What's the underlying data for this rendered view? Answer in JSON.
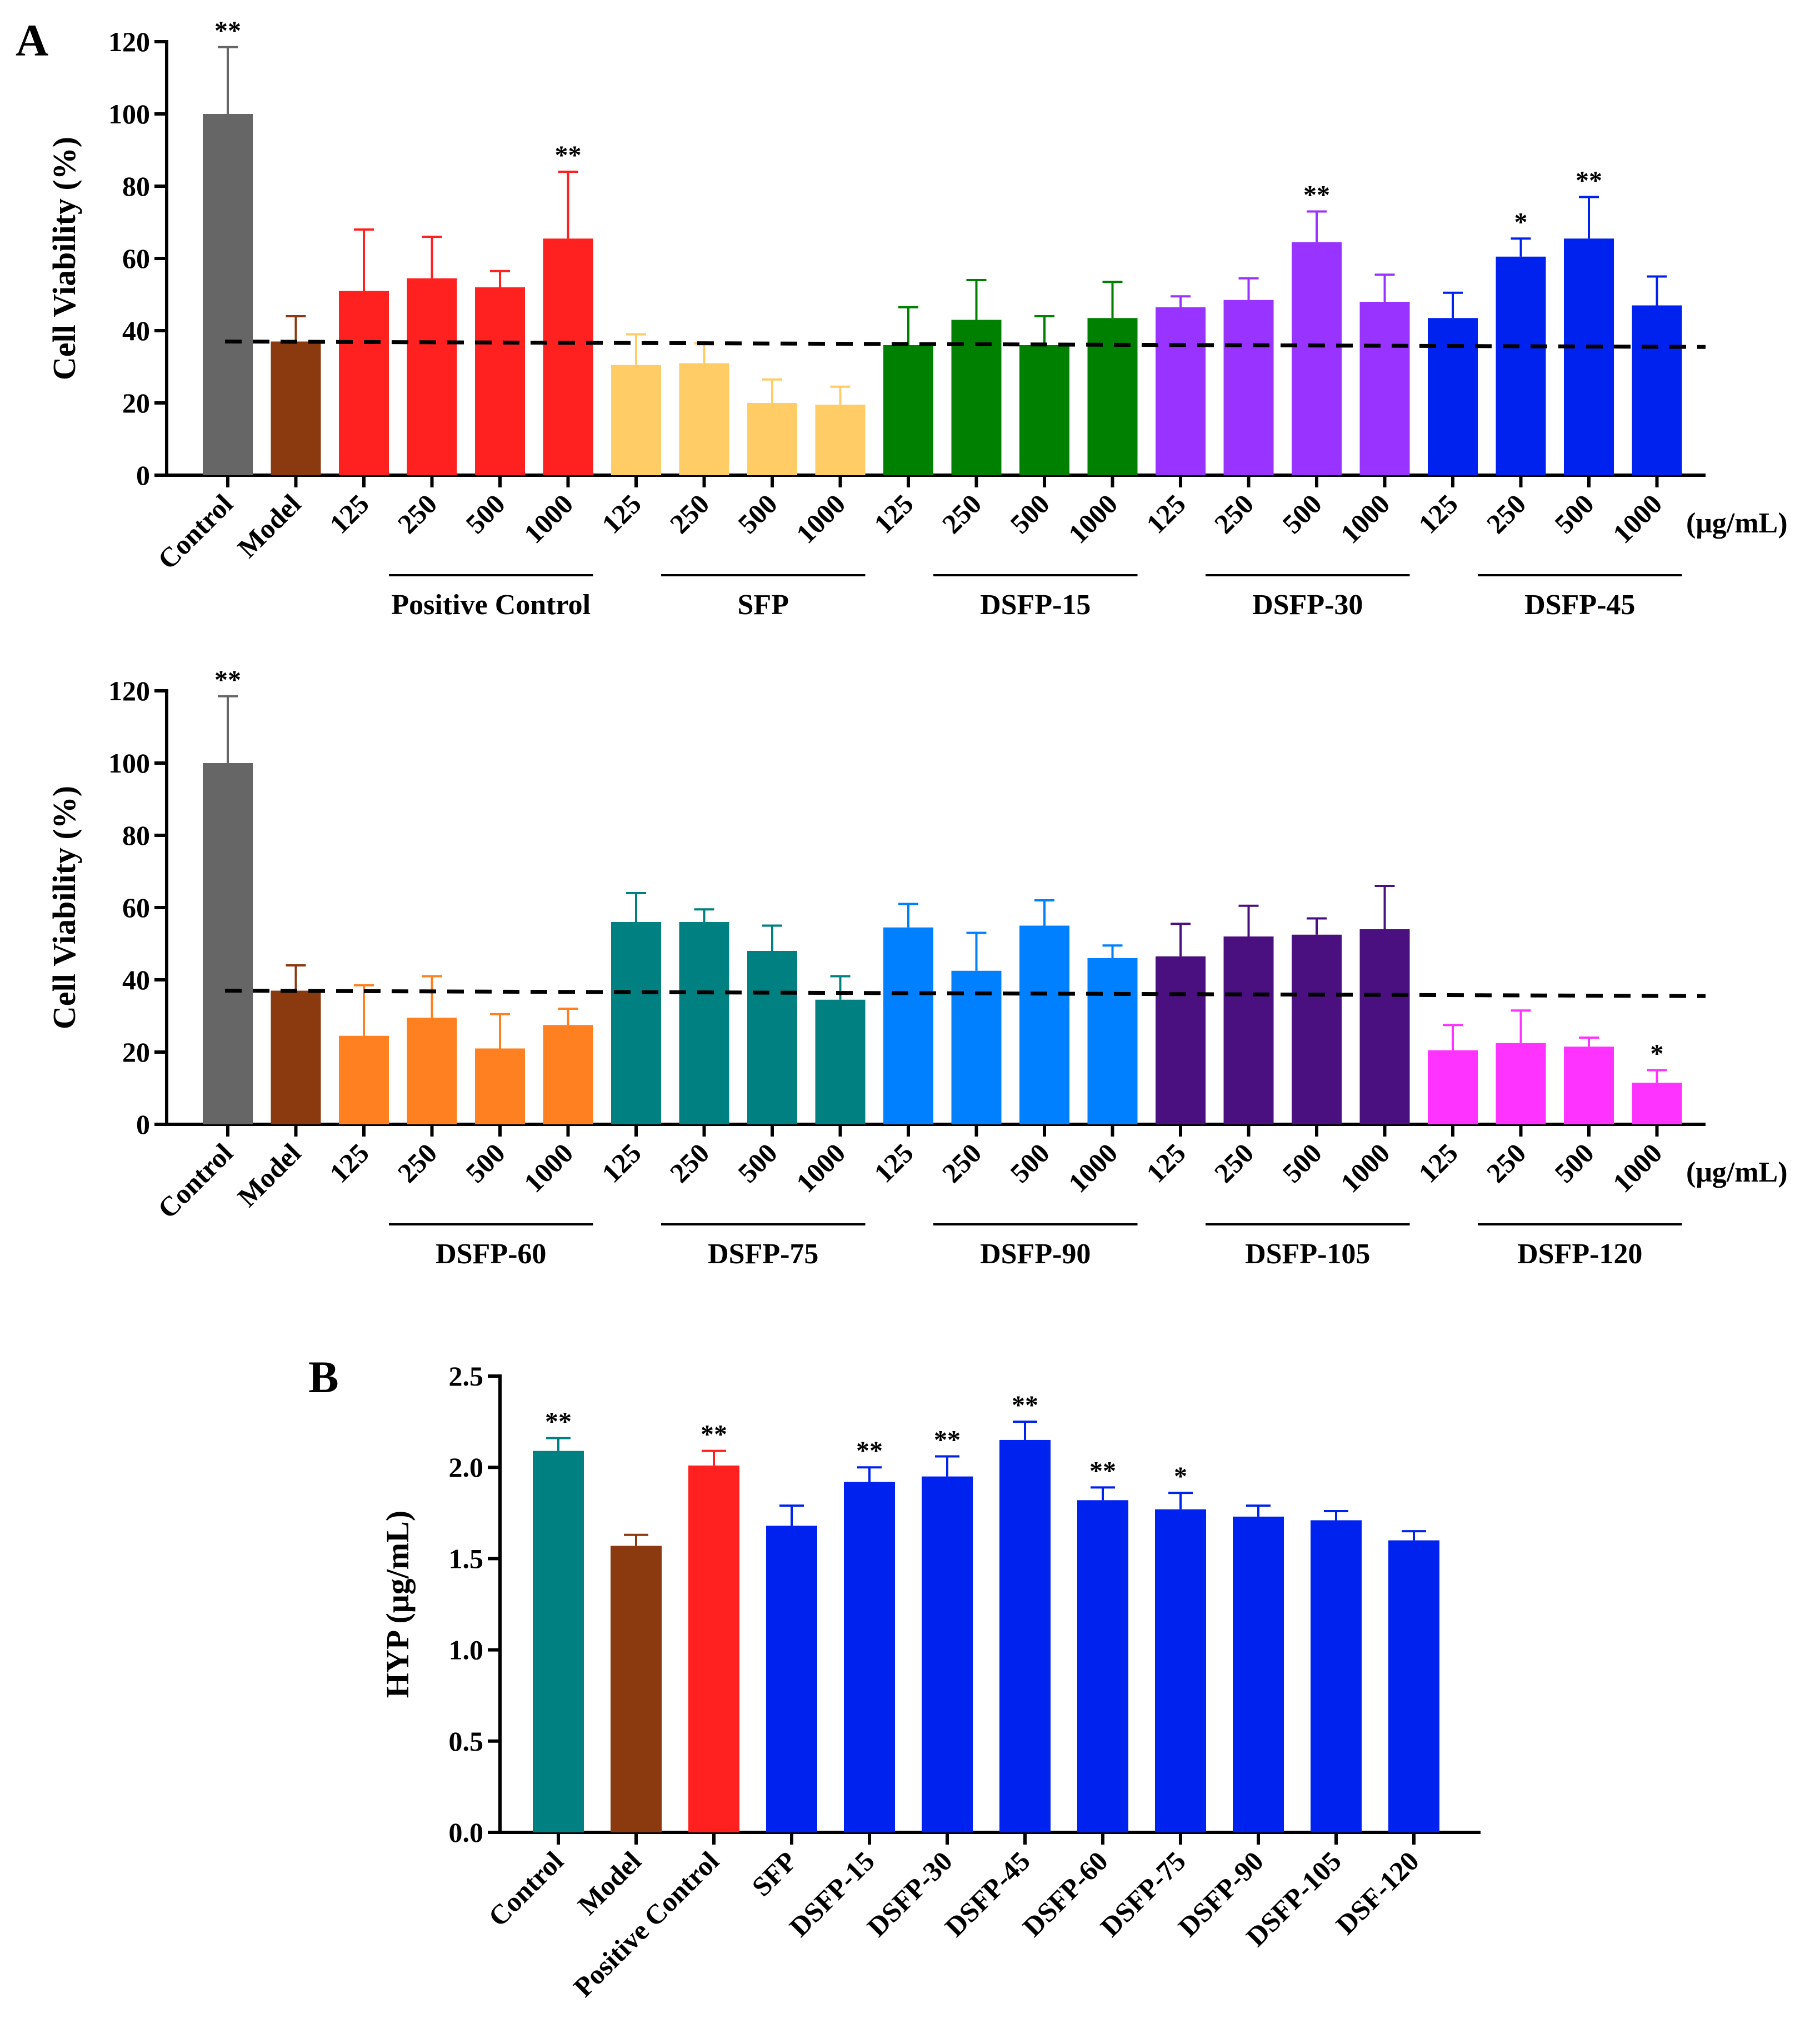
{
  "panel_labels": {
    "a": "A",
    "b": "B"
  },
  "chart_data": [
    {
      "type": "bar",
      "panel": "A",
      "ylabel": "Cell Viability (%)",
      "ylim": [
        0,
        120
      ],
      "yticks": [
        0,
        20,
        40,
        60,
        80,
        100,
        120
      ],
      "unit_label": "(μg/mL)",
      "reference_line": {
        "style": "dashed",
        "y_start": 37,
        "y_end": 35.5
      },
      "standalone": [
        {
          "label": "Control",
          "value": 100,
          "error": 18.5,
          "sig": "**",
          "color": "#666666"
        },
        {
          "label": "Model",
          "value": 37,
          "error": 7,
          "sig": "",
          "color": "#8B3A0F"
        }
      ],
      "groups": [
        {
          "name": "Positive Control",
          "color": "#FF2020",
          "concentrations": [
            "125",
            "250",
            "500",
            "1000"
          ],
          "values": [
            51,
            54.5,
            52,
            65.5
          ],
          "errors": [
            17,
            11.5,
            4.5,
            18.5
          ],
          "sig": [
            "",
            "",
            "",
            "**"
          ]
        },
        {
          "name": "SFP",
          "color": "#FFCC66",
          "concentrations": [
            "125",
            "250",
            "500",
            "1000"
          ],
          "values": [
            30.5,
            31,
            20,
            19.5
          ],
          "errors": [
            8.5,
            5.5,
            6.5,
            5
          ],
          "sig": [
            "",
            "",
            "",
            ""
          ]
        },
        {
          "name": "DSFP-15",
          "color": "#008000",
          "concentrations": [
            "125",
            "250",
            "500",
            "1000"
          ],
          "values": [
            36,
            43,
            36,
            43.5
          ],
          "errors": [
            10.5,
            11,
            8,
            10
          ],
          "sig": [
            "",
            "",
            "",
            ""
          ]
        },
        {
          "name": "DSFP-30",
          "color": "#9933FF",
          "concentrations": [
            "125",
            "250",
            "500",
            "1000"
          ],
          "values": [
            46.5,
            48.5,
            64.5,
            48
          ],
          "errors": [
            3,
            6,
            8.5,
            7.5
          ],
          "sig": [
            "",
            "",
            "**",
            ""
          ]
        },
        {
          "name": "DSFP-45",
          "color": "#0022EE",
          "concentrations": [
            "125",
            "250",
            "500",
            "1000"
          ],
          "values": [
            43.5,
            60.5,
            65.5,
            47
          ],
          "errors": [
            7,
            5,
            11.5,
            8
          ],
          "sig": [
            "",
            "*",
            "**",
            ""
          ]
        }
      ]
    },
    {
      "type": "bar",
      "panel": "A",
      "ylabel": "Cell Viability (%)",
      "ylim": [
        0,
        120
      ],
      "yticks": [
        0,
        20,
        40,
        60,
        80,
        100,
        120
      ],
      "unit_label": "(μg/mL)",
      "reference_line": {
        "style": "dashed",
        "y_start": 37,
        "y_end": 35.5
      },
      "standalone": [
        {
          "label": "Control",
          "value": 100,
          "error": 18.5,
          "sig": "**",
          "color": "#666666"
        },
        {
          "label": "Model",
          "value": 37,
          "error": 7,
          "sig": "",
          "color": "#8B3A0F"
        }
      ],
      "groups": [
        {
          "name": "DSFP-60",
          "color": "#FF8020",
          "concentrations": [
            "125",
            "250",
            "500",
            "1000"
          ],
          "values": [
            24.5,
            29.5,
            21,
            27.5
          ],
          "errors": [
            14,
            11.5,
            9.5,
            4.5
          ],
          "sig": [
            "",
            "",
            "",
            ""
          ]
        },
        {
          "name": "DSFP-75",
          "color": "#008080",
          "concentrations": [
            "125",
            "250",
            "500",
            "1000"
          ],
          "values": [
            56,
            56,
            48,
            34.5
          ],
          "errors": [
            8,
            3.5,
            7,
            6.5
          ],
          "sig": [
            "",
            "",
            "",
            ""
          ]
        },
        {
          "name": "DSFP-90",
          "color": "#0080FF",
          "concentrations": [
            "125",
            "250",
            "500",
            "1000"
          ],
          "values": [
            54.5,
            42.5,
            55,
            46
          ],
          "errors": [
            6.5,
            10.5,
            7,
            3.5
          ],
          "sig": [
            "",
            "",
            "",
            ""
          ]
        },
        {
          "name": "DSFP-105",
          "color": "#4B1080",
          "concentrations": [
            "125",
            "250",
            "500",
            "1000"
          ],
          "values": [
            46.5,
            52,
            52.5,
            54
          ],
          "errors": [
            9,
            8.5,
            4.5,
            12
          ],
          "sig": [
            "",
            "",
            "",
            ""
          ]
        },
        {
          "name": "DSFP-120",
          "color": "#FF33FF",
          "concentrations": [
            "125",
            "250",
            "500",
            "1000"
          ],
          "values": [
            20.5,
            22.5,
            21.5,
            11.5
          ],
          "errors": [
            7,
            9,
            2.5,
            3.5
          ],
          "sig": [
            "",
            "",
            "",
            "*"
          ]
        }
      ]
    },
    {
      "type": "bar",
      "panel": "B",
      "ylabel": "HYP (μg/mL)",
      "ylim": [
        0,
        2.5
      ],
      "yticks": [
        "0.0",
        "0.5",
        "1.0",
        "1.5",
        "2.0",
        "2.5"
      ],
      "categories": [
        "Control",
        "Model",
        "Positive Control",
        "SFP",
        "DSFP-15",
        "DSFP-30",
        "DSFP-45",
        "DSFP-60",
        "DSFP-75",
        "DSFP-90",
        "DSFP-105",
        "DSF-120"
      ],
      "values": [
        2.09,
        1.57,
        2.01,
        1.68,
        1.92,
        1.95,
        2.15,
        1.82,
        1.77,
        1.73,
        1.71,
        1.6
      ],
      "errors": [
        0.07,
        0.06,
        0.08,
        0.11,
        0.08,
        0.11,
        0.1,
        0.07,
        0.09,
        0.06,
        0.05,
        0.05
      ],
      "sig": [
        "**",
        "",
        "**",
        "",
        "**",
        "**",
        "**",
        "**",
        "*",
        "",
        "",
        ""
      ],
      "colors": [
        "#008080",
        "#8B3A0F",
        "#FF2020",
        "#0022EE",
        "#0022EE",
        "#0022EE",
        "#0022EE",
        "#0022EE",
        "#0022EE",
        "#0022EE",
        "#0022EE",
        "#0022EE"
      ]
    }
  ]
}
